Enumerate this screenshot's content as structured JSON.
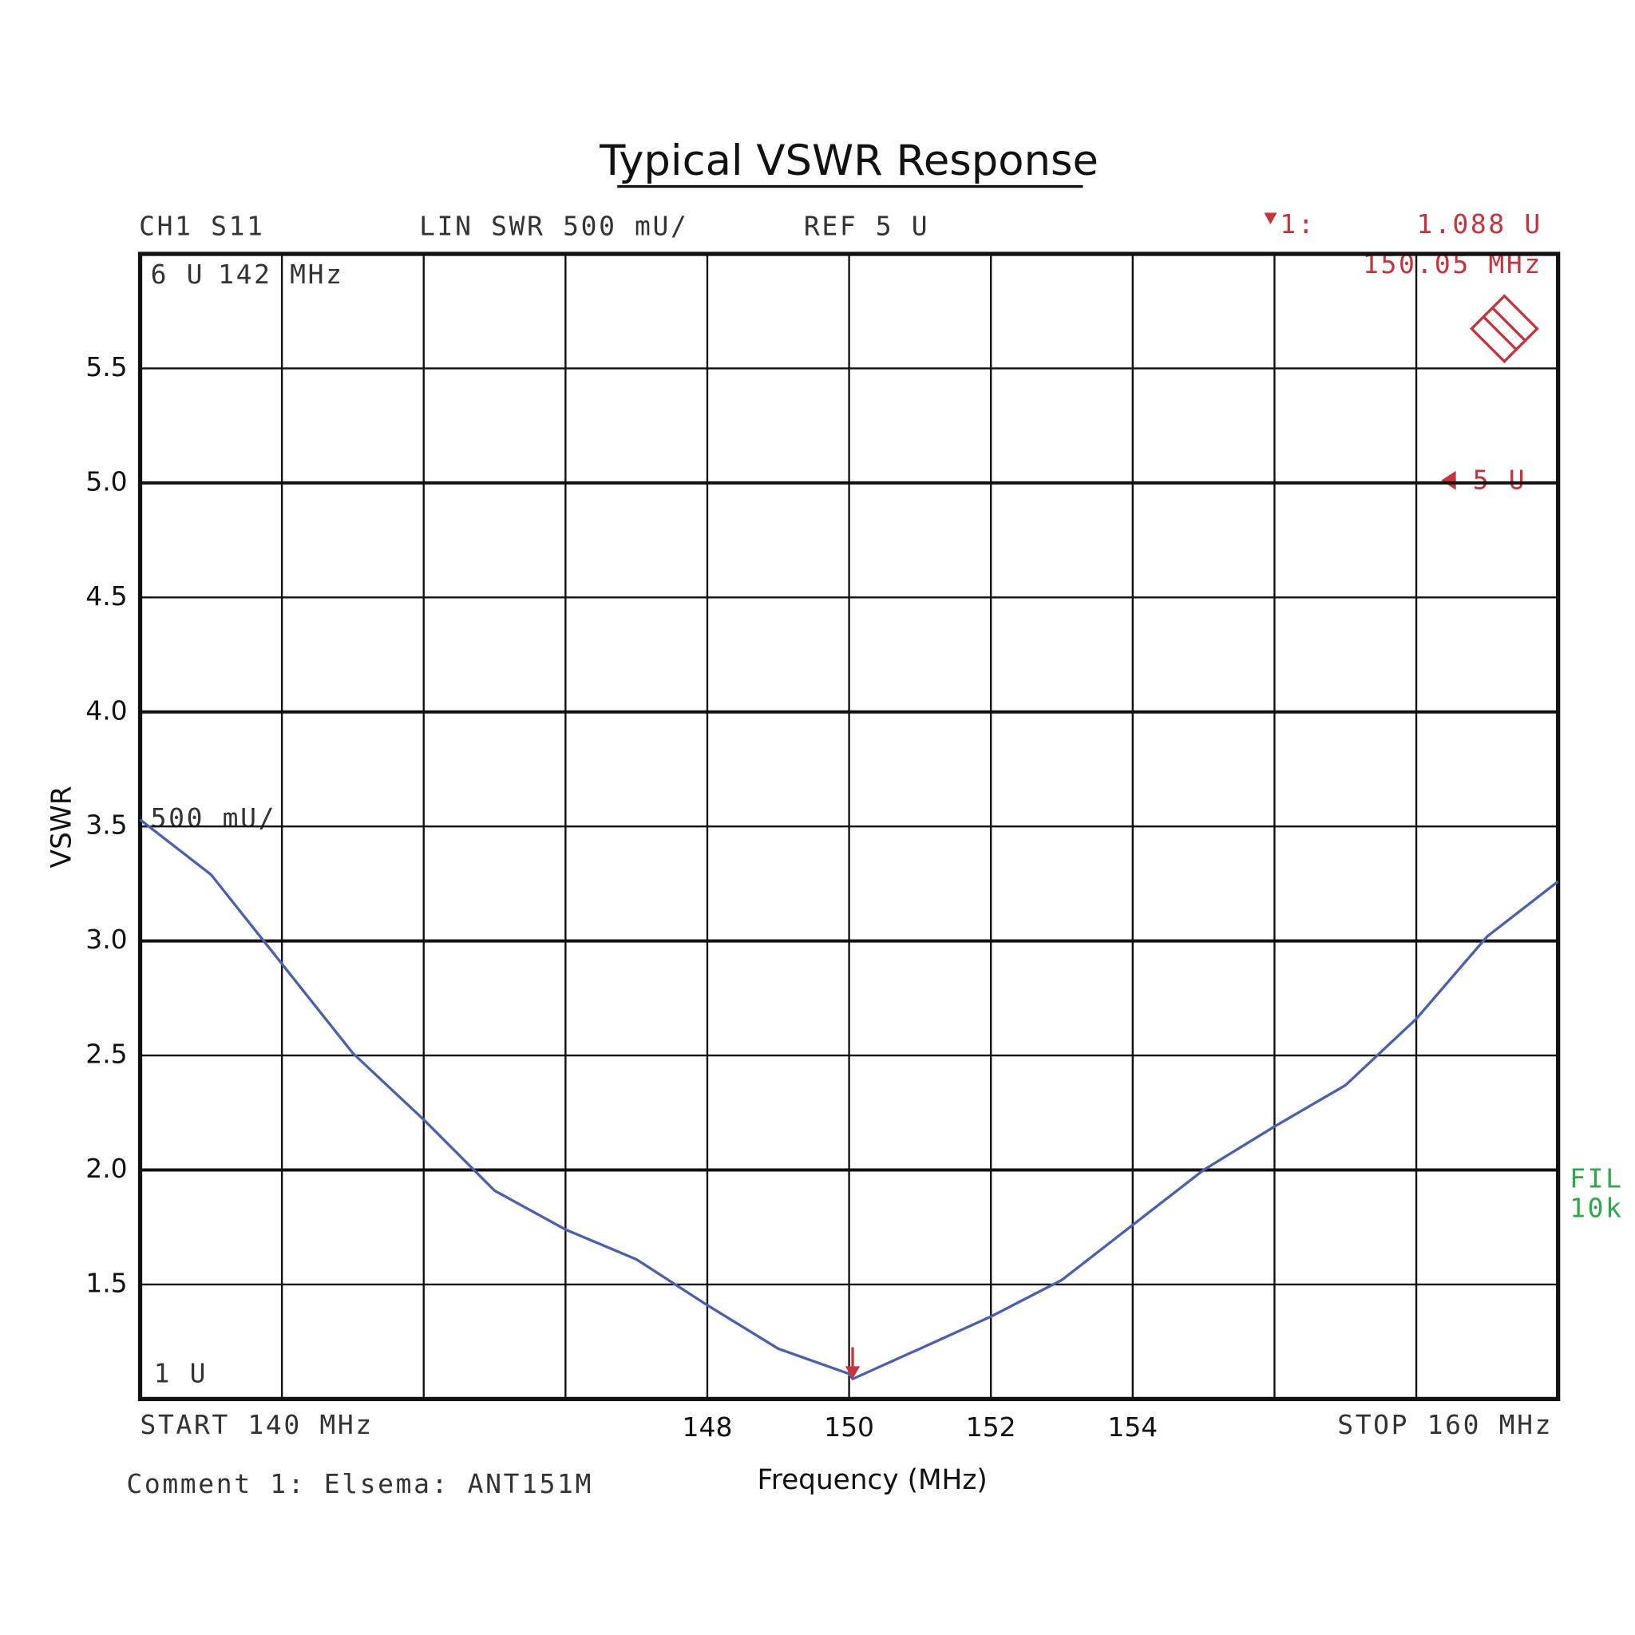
{
  "chart_data": {
    "type": "line",
    "title": "Typical VSWR Response",
    "x_label": "Frequency (MHz)",
    "y_label": "VSWR",
    "x": [
      140,
      141,
      142,
      143,
      144,
      145,
      146,
      147,
      148,
      149,
      150,
      150.05,
      151,
      152,
      153,
      154,
      155,
      156,
      157,
      158,
      159,
      160
    ],
    "series": [
      {
        "name": "CH1 S11",
        "color": "#4a5fb0",
        "values": [
          3.53,
          3.29,
          2.9,
          2.51,
          2.22,
          1.91,
          1.74,
          1.61,
          1.41,
          1.22,
          1.11,
          1.088,
          1.22,
          1.36,
          1.52,
          1.76,
          2.0,
          2.19,
          2.37,
          2.66,
          3.02,
          3.26
        ]
      }
    ],
    "xlim": [
      140,
      160
    ],
    "ylim": [
      1,
      6
    ],
    "xticks": [
      148,
      150,
      152,
      154
    ],
    "xgrid": [
      142,
      144,
      146,
      148,
      150,
      152,
      154,
      156,
      158
    ],
    "yticks": [
      1.5,
      {
        "value": 2,
        "label": "2.0"
      },
      2.5,
      {
        "value": 3,
        "label": "3.0"
      },
      3.5,
      {
        "value": 4,
        "label": "4.0"
      },
      4.5,
      {
        "value": 5,
        "label": "5.0"
      },
      5.5
    ],
    "grid": true,
    "marker": {
      "x": 150.05,
      "y": 1.088,
      "name": "1:",
      "value_label": "1.088  U",
      "x_label": "150.05 MHz",
      "color": "#c8323c"
    }
  },
  "instrument": {
    "channel": "CH1 S11",
    "format": "LIN SWR 500 mU/",
    "ref": "REF 5 U",
    "top": "6 U",
    "top_freq": "142 MHz",
    "scale": "500 mU/",
    "bottom": "1 U",
    "start": "START  140 MHz",
    "stop": "STOP 160 MHz",
    "ref_marker": "5 U",
    "filter": "FIL",
    "filter_value": "10k",
    "comment": "Comment 1: Elsema: ANT151M"
  }
}
